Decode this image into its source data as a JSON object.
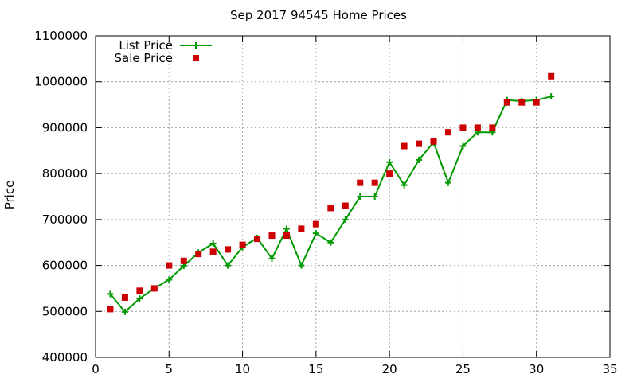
{
  "chart_data": {
    "type": "line",
    "title": "Sep 2017 94545 Home Prices",
    "xlabel": "",
    "ylabel": "Price",
    "xlim": [
      0,
      35
    ],
    "ylim": [
      400000,
      1100000
    ],
    "x_ticks": [
      0,
      5,
      10,
      15,
      20,
      25,
      30,
      35
    ],
    "y_ticks": [
      400000,
      500000,
      600000,
      700000,
      800000,
      900000,
      1000000,
      1100000
    ],
    "grid": true,
    "legend_position": "top-left",
    "series": [
      {
        "name": "List Price",
        "style": "line-with-plus-markers",
        "color": "#009900",
        "points": [
          [
            1,
            538000
          ],
          [
            2,
            499000
          ],
          [
            3,
            528000
          ],
          [
            4,
            550000
          ],
          [
            5,
            569000
          ],
          [
            6,
            599000
          ],
          [
            7,
            628000
          ],
          [
            8,
            648000
          ],
          [
            9,
            600000
          ],
          [
            10,
            640000
          ],
          [
            11,
            660000
          ],
          [
            12,
            615000
          ],
          [
            13,
            680000
          ],
          [
            14,
            600000
          ],
          [
            15,
            670000
          ],
          [
            16,
            650000
          ],
          [
            17,
            700000
          ],
          [
            18,
            750000
          ],
          [
            19,
            750000
          ],
          [
            20,
            825000
          ],
          [
            21,
            775000
          ],
          [
            22,
            830000
          ],
          [
            23,
            868000
          ],
          [
            24,
            780000
          ],
          [
            25,
            860000
          ],
          [
            26,
            890000
          ],
          [
            27,
            890000
          ],
          [
            28,
            960000
          ],
          [
            29,
            958000
          ],
          [
            30,
            960000
          ],
          [
            31,
            968000
          ]
        ]
      },
      {
        "name": "Sale Price",
        "style": "square-markers",
        "color": "#cc0000",
        "points": [
          [
            1,
            505000
          ],
          [
            2,
            530000
          ],
          [
            3,
            545000
          ],
          [
            4,
            550000
          ],
          [
            5,
            600000
          ],
          [
            6,
            610000
          ],
          [
            7,
            625000
          ],
          [
            8,
            630000
          ],
          [
            9,
            635000
          ],
          [
            10,
            645000
          ],
          [
            11,
            658000
          ],
          [
            12,
            665000
          ],
          [
            13,
            665000
          ],
          [
            14,
            680000
          ],
          [
            15,
            690000
          ],
          [
            16,
            725000
          ],
          [
            17,
            730000
          ],
          [
            18,
            780000
          ],
          [
            19,
            780000
          ],
          [
            20,
            800000
          ],
          [
            21,
            860000
          ],
          [
            22,
            865000
          ],
          [
            23,
            870000
          ],
          [
            24,
            890000
          ],
          [
            25,
            900000
          ],
          [
            26,
            900000
          ],
          [
            27,
            900000
          ],
          [
            28,
            955000
          ],
          [
            29,
            955000
          ],
          [
            30,
            955000
          ],
          [
            31,
            1012000
          ]
        ]
      }
    ]
  }
}
